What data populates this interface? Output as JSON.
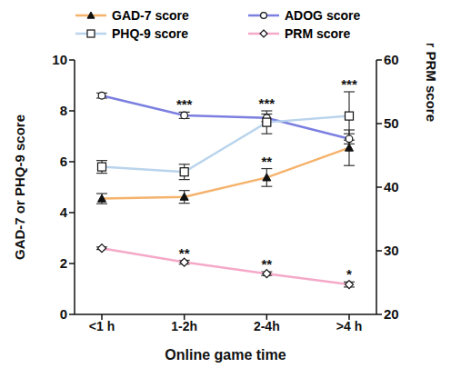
{
  "chart_data": {
    "type": "line",
    "x_label": "Online game time",
    "y_label": "GAD-7 or PHQ-9 score",
    "y2_label": "ADOG or PRM score",
    "categories": [
      "<1 h",
      "1-2h",
      "2-4h",
      ">4 h"
    ],
    "ylim": [
      0,
      10
    ],
    "yticks": [
      0,
      2,
      4,
      6,
      8,
      10
    ],
    "y2lim": [
      20,
      60
    ],
    "y2ticks": [
      20,
      30,
      40,
      50,
      60
    ],
    "legend": "top",
    "series": [
      {
        "name": "GAD-7 score",
        "color": "#f5b26b",
        "marker": "triangle",
        "axis": "y",
        "values": [
          4.55,
          4.62,
          5.38,
          6.55
        ],
        "errors": [
          0.2,
          0.25,
          0.35,
          0.7
        ]
      },
      {
        "name": "ADOG score",
        "color": "#7b7fe0",
        "marker": "circle",
        "axis": "y2",
        "values": [
          54.4,
          51.3,
          50.9,
          47.6
        ],
        "errors": [
          0.4,
          0.5,
          0.6,
          0.8
        ]
      },
      {
        "name": "PHQ-9 score",
        "color": "#b9d4ec",
        "marker": "square",
        "axis": "y",
        "values": [
          5.8,
          5.6,
          7.55,
          7.8
        ],
        "errors": [
          0.25,
          0.3,
          0.45,
          0.95
        ]
      },
      {
        "name": "PRM score",
        "color": "#f5a9c8",
        "marker": "diamond",
        "axis": "y2",
        "values": [
          30.4,
          28.2,
          26.4,
          24.7
        ],
        "errors": [
          0.2,
          0.3,
          0.3,
          0.4
        ]
      }
    ],
    "annotations": [
      {
        "text": "***",
        "category": "1-2h",
        "series": "ADOG score"
      },
      {
        "text": "***",
        "category": "2-4h",
        "series": "PHQ-9 score"
      },
      {
        "text": "**",
        "category": "2-4h",
        "series": "GAD-7 score"
      },
      {
        "text": "***",
        "category": ">4 h",
        "series": "PHQ-9 score"
      },
      {
        "text": "**",
        "category": "1-2h",
        "series": "PRM score"
      },
      {
        "text": "**",
        "category": "2-4h",
        "series": "PRM score"
      },
      {
        "text": "*",
        "category": ">4 h",
        "series": "PRM score"
      }
    ]
  }
}
